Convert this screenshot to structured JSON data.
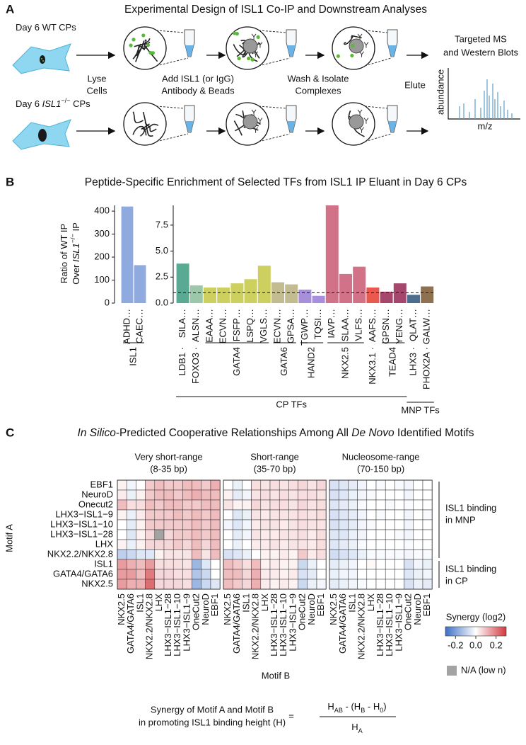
{
  "panel_labels": [
    "A",
    "B",
    "C"
  ],
  "panel_a": {
    "title": "Experimental Design of ISL1 Co-IP and Downstream Analyses",
    "wt_label": [
      "Day 6 WT CPs"
    ],
    "ko_label": [
      "Day 6 ",
      {
        "text": "ISL1",
        "italic": true
      },
      {
        "text": "−/−",
        "sup": true
      },
      " CPs"
    ],
    "steps": [
      [
        "Lyse",
        "Cells"
      ],
      [
        "Add ISL1 (or IgG)",
        "Antibody & Beads"
      ],
      [
        "Wash & Isolate",
        "Complexes"
      ],
      [
        "Elute"
      ]
    ],
    "readout": [
      "Targeted MS",
      "and Western Blots"
    ],
    "xlabel": "m/z",
    "ylabel": "abundance"
  },
  "chart_data": [
    {
      "type": "bar",
      "title": "Peptide-Specific Enrichment of Selected TFs from ISL1 IP Eluant in Day 6 CPs",
      "ylabel": [
        [
          "Ratio of WT IP"
        ],
        [
          "Over ",
          {
            "text": "ISL1",
            "italic": true
          },
          {
            "text": "−/−",
            "sup": true
          },
          " IP"
        ]
      ],
      "panels": [
        {
          "ylim": [
            0,
            425
          ],
          "yticks": [
            0,
            100,
            200,
            300,
            400
          ],
          "supergroups": [
            {
              "groups": [
                {
                  "name": "ISL1",
                  "color": "#8eaadf",
                  "categories": [
                    "ADHD…",
                    "CAEC…"
                  ],
                  "values": [
                    420,
                    165
                  ]
                }
              ]
            }
          ]
        },
        {
          "ylim": [
            0,
            9.4
          ],
          "yticks": [
            {
              "value": 0,
              "label": "0.0"
            },
            2.5,
            {
              "value": 5,
              "label": "5.0"
            },
            7.5
          ],
          "reference_line": 1,
          "supergroups": [
            {
              "name": "CP TFs",
              "groups": [
                {
                  "name": "LDB1 ·",
                  "color": "#5aaa93",
                  "categories": [
                    "SILA…"
                  ],
                  "values": [
                    3.8
                  ]
                },
                {
                  "name": "FOXO3 ·",
                  "color": "#9cc7a9",
                  "categories": [
                    "ALSN…"
                  ],
                  "values": [
                    1.7
                  ]
                },
                {
                  "name": "GATA4",
                  "color": "#cdd05f",
                  "categories": [
                    "EAAA…",
                    "ECVN…",
                    "FSFP…",
                    "LSPQ…",
                    "VGLS…"
                  ],
                  "values": [
                    1.5,
                    1.5,
                    1.9,
                    2.3,
                    3.6
                  ]
                },
                {
                  "name": "GATA6",
                  "color": "#c3bc91",
                  "categories": [
                    "ECVN…",
                    "GPSA…"
                  ],
                  "values": [
                    2.0,
                    1.8
                  ]
                },
                {
                  "name": "HAND2",
                  "color": "#a78fdc",
                  "categories": [
                    "TGWP…",
                    "TQSI…"
                  ],
                  "values": [
                    1.3,
                    0.7
                  ]
                },
                {
                  "name": "NKX2.5",
                  "color": "#d27288",
                  "categories": [
                    "IAVP…",
                    "SLAA…",
                    "VLFS…"
                  ],
                  "values": [
                    9.4,
                    2.8,
                    3.5
                  ]
                },
                {
                  "name": "NKX3.1 ·",
                  "color": "#e9594e",
                  "categories": [
                    "AAFS…"
                  ],
                  "values": [
                    1.5
                  ]
                },
                {
                  "name": "TEAD4",
                  "color": "#a5466d",
                  "categories": [
                    "GPSN…",
                    "YENG…"
                  ],
                  "values": [
                    1.1,
                    1.9
                  ]
                }
              ]
            },
            {
              "name": "MNP TFs",
              "groups": [
                {
                  "name": "LHX3 ·",
                  "color": "#4d6d8e",
                  "categories": [
                    "QLAT…"
                  ],
                  "values": [
                    0.8
                  ]
                },
                {
                  "name": "PHOX2A ·",
                  "color": "#8d7150",
                  "categories": [
                    "GALW…"
                  ],
                  "values": [
                    1.6
                  ]
                }
              ]
            }
          ]
        }
      ]
    },
    {
      "type": "heatmap",
      "title": [
        {
          "text": "In Silico",
          "italic": true
        },
        "-Predicted Cooperative Relationships Among All ",
        {
          "text": "De Novo",
          "italic": true
        },
        " Identified Motifs"
      ],
      "ylabel": "Motif A",
      "xlabel": "Motif B",
      "rows": [
        "EBF1",
        "NeuroD",
        "Onecut2",
        "LHX3−ISL1−9",
        "LHX3−ISL1−10",
        "LHX3−ISL1−28",
        "LHX",
        "NKX2.2/NKX2.8",
        "ISL1",
        "GATA4/GATA6",
        "NKX2.5"
      ],
      "columns": [
        "NKX2.5",
        "GATA4/GATA6",
        "ISL1",
        "NKX2.2/NKX2.8",
        "LHX",
        "LHX3−ISL1−28",
        "LHX3−ISL1−10",
        "LHX3−ISL1−9",
        "OneCut2",
        "NeuroD",
        "EBF1"
      ],
      "row_groups": [
        [
          "ISL1 binding",
          "in MNP"
        ],
        [
          "ISL1 binding",
          "in CP"
        ]
      ],
      "clim": [
        -0.3,
        0.3
      ],
      "colormap": [
        "#3b6fc6",
        "#ffffff",
        "#d2383f"
      ],
      "na_color": "#a3a3a3",
      "na_label": "N/A (low n)",
      "colorbar_label": "Synergy (log2)",
      "colorbar_ticks": [
        -0.2,
        {
          "value": 0,
          "label": "0.0"
        },
        0.2
      ],
      "panels": [
        {
          "title": "Very short-range",
          "subtitle": "(8-35 bp)",
          "values": [
            [
              0.02,
              -0.02,
              0.0,
              0.08,
              0.1,
              0.08,
              0.08,
              0.1,
              0.1,
              0.08,
              0.12
            ],
            [
              0.03,
              -0.03,
              0.02,
              0.08,
              0.1,
              0.1,
              0.08,
              0.1,
              0.12,
              0.1,
              0.1
            ],
            [
              0.1,
              0.05,
              0.05,
              0.1,
              0.08,
              0.1,
              0.1,
              0.08,
              0.08,
              0.1,
              0.1
            ],
            [
              0.02,
              -0.03,
              0.03,
              0.08,
              0.08,
              0.08,
              0.1,
              0.08,
              0.1,
              0.08,
              0.1
            ],
            [
              0.0,
              -0.04,
              0.02,
              0.08,
              0.08,
              0.08,
              0.08,
              0.08,
              0.1,
              0.08,
              0.1
            ],
            [
              0.0,
              -0.05,
              0.02,
              0.06,
              null,
              0.06,
              0.08,
              0.08,
              0.1,
              0.08,
              0.1
            ],
            [
              0.02,
              -0.03,
              0.02,
              0.06,
              0.06,
              0.06,
              0.08,
              0.06,
              0.1,
              0.06,
              0.1
            ],
            [
              -0.1,
              -0.08,
              -0.05,
              -0.05,
              0.02,
              0.04,
              0.04,
              0.04,
              0.1,
              0.04,
              0.1
            ],
            [
              0.15,
              0.12,
              0.1,
              0.15,
              0.05,
              0.05,
              0.05,
              0.04,
              -0.15,
              -0.05,
              0.0
            ],
            [
              0.15,
              0.15,
              0.1,
              0.2,
              0.06,
              0.06,
              0.05,
              0.05,
              -0.12,
              -0.08,
              0.0
            ],
            [
              0.15,
              0.12,
              0.12,
              0.22,
              0.06,
              0.06,
              0.06,
              0.05,
              -0.15,
              -0.08,
              -0.05
            ]
          ]
        },
        {
          "title": "Short-range",
          "subtitle": "(35-70 bp)",
          "values": [
            [
              0.0,
              -0.03,
              0.0,
              0.05,
              0.04,
              0.05,
              0.04,
              0.05,
              0.06,
              0.04,
              0.06
            ],
            [
              0.02,
              -0.04,
              -0.02,
              0.04,
              0.05,
              0.04,
              0.05,
              0.04,
              0.05,
              0.05,
              0.04
            ],
            [
              0.04,
              0.02,
              0.02,
              0.06,
              0.04,
              0.05,
              0.05,
              0.04,
              0.06,
              0.04,
              0.05
            ],
            [
              0.0,
              -0.05,
              -0.03,
              0.04,
              0.03,
              0.04,
              0.04,
              0.04,
              0.05,
              0.04,
              0.05
            ],
            [
              -0.02,
              -0.05,
              -0.02,
              0.03,
              0.04,
              0.04,
              0.03,
              0.04,
              0.05,
              0.04,
              0.04
            ],
            [
              0.0,
              -0.04,
              -0.02,
              0.04,
              0.03,
              0.03,
              0.04,
              0.04,
              0.05,
              0.03,
              0.05
            ],
            [
              0.0,
              -0.03,
              0.0,
              0.03,
              0.03,
              0.04,
              0.03,
              0.04,
              0.04,
              0.03,
              0.05
            ],
            [
              -0.06,
              -0.05,
              -0.03,
              0.0,
              0.02,
              0.02,
              0.03,
              0.02,
              0.08,
              0.03,
              0.05
            ],
            [
              0.1,
              0.08,
              0.05,
              0.1,
              0.02,
              0.03,
              0.02,
              0.02,
              -0.08,
              -0.03,
              0.0
            ],
            [
              0.1,
              0.1,
              0.06,
              0.12,
              0.03,
              0.03,
              0.02,
              0.03,
              -0.06,
              -0.04,
              0.0
            ],
            [
              0.1,
              0.08,
              0.06,
              0.12,
              0.03,
              0.02,
              0.03,
              0.02,
              -0.08,
              -0.03,
              -0.02
            ]
          ]
        },
        {
          "title": "Nucleosome-range",
          "subtitle": "(70-150 bp)",
          "values": [
            [
              -0.06,
              -0.05,
              -0.04,
              -0.02,
              0.0,
              -0.01,
              0.0,
              -0.01,
              -0.02,
              0.0,
              0.0
            ],
            [
              -0.06,
              -0.05,
              -0.03,
              -0.02,
              -0.01,
              0.0,
              0.0,
              0.0,
              -0.02,
              0.0,
              0.0
            ],
            [
              -0.05,
              -0.04,
              -0.03,
              -0.01,
              0.0,
              0.0,
              -0.01,
              0.0,
              -0.01,
              0.0,
              0.0
            ],
            [
              -0.06,
              -0.05,
              -0.04,
              -0.02,
              0.0,
              -0.01,
              0.0,
              0.0,
              -0.02,
              0.0,
              -0.01
            ],
            [
              -0.06,
              -0.05,
              -0.04,
              -0.02,
              -0.01,
              0.0,
              0.0,
              0.0,
              -0.02,
              0.0,
              0.0
            ],
            [
              -0.05,
              -0.05,
              -0.03,
              -0.02,
              0.0,
              0.0,
              0.0,
              -0.01,
              -0.02,
              0.0,
              0.0
            ],
            [
              -0.05,
              -0.04,
              -0.03,
              -0.01,
              0.0,
              0.0,
              0.0,
              0.0,
              -0.01,
              0.0,
              0.0
            ],
            [
              -0.07,
              -0.06,
              -0.05,
              -0.03,
              -0.01,
              -0.01,
              -0.01,
              -0.01,
              -0.02,
              -0.01,
              -0.01
            ],
            [
              -0.04,
              -0.03,
              -0.02,
              0.0,
              0.01,
              0.0,
              0.0,
              0.0,
              -0.06,
              -0.02,
              -0.03
            ],
            [
              -0.03,
              -0.02,
              -0.02,
              0.0,
              0.0,
              0.0,
              0.0,
              0.0,
              -0.05,
              -0.03,
              -0.02
            ],
            [
              -0.04,
              -0.03,
              -0.02,
              -0.01,
              0.0,
              0.0,
              0.0,
              0.0,
              -0.06,
              -0.03,
              -0.04
            ]
          ]
        }
      ],
      "formula": {
        "lhs": [
          "Synergy of Motif A and Motif B",
          "in promoting ISL1 binding height (H)"
        ],
        "equals": "=",
        "numerator": [
          "H",
          {
            "text": "AB",
            "sub": true
          },
          " - (H",
          {
            "text": "B",
            "sub": true
          },
          " - H",
          {
            "text": "0",
            "sub": true
          },
          ")"
        ],
        "denominator": [
          "H",
          {
            "text": "A",
            "sub": true
          }
        ]
      }
    }
  ]
}
